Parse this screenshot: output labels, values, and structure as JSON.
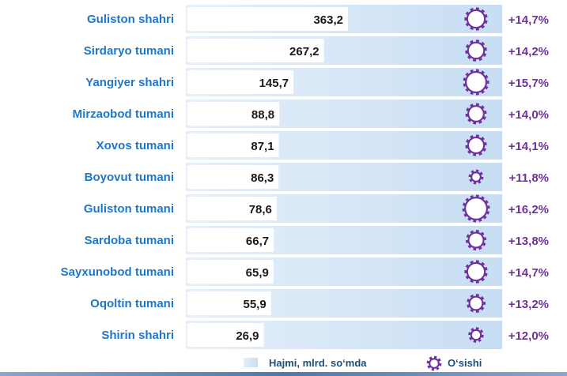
{
  "chart_data": {
    "type": "bar",
    "orientation": "horizontal",
    "categories": [
      "Guliston shahri",
      "Sirdaryo tumani",
      "Yangiyer shahri",
      "Mirzaobod tumani",
      "Xovos tumani",
      "Boyovut tumani",
      "Guliston tumani",
      "Sardoba tumani",
      "Sayxunobod tumani",
      "Oqoltin tumani",
      "Shirin shahri"
    ],
    "series": [
      {
        "name": "Hajmi, mlrd. so‘mda",
        "values": [
          363.2,
          267.2,
          145.7,
          88.8,
          87.1,
          86.3,
          78.6,
          66.7,
          65.9,
          55.9,
          26.9
        ],
        "labels": [
          "363,2",
          "267,2",
          "145,7",
          "88,8",
          "87,1",
          "86,3",
          "78,6",
          "66,7",
          "65,9",
          "55,9",
          "26,9"
        ]
      },
      {
        "name": "O‘sishi",
        "values": [
          14.7,
          14.2,
          15.7,
          14.0,
          14.1,
          11.8,
          16.2,
          13.8,
          14.7,
          13.2,
          12.0
        ],
        "labels": [
          "+14,7%",
          "+14,2%",
          "+15,7%",
          "+14,0%",
          "+14,1%",
          "+11,8%",
          "+16,2%",
          "+13,8%",
          "+14,7%",
          "+13,2%",
          "+12,0%"
        ]
      }
    ],
    "legend": {
      "position": "bottom",
      "entries": [
        "Hajmi, mlrd. so‘mda",
        "O‘sishi"
      ]
    },
    "grid": false,
    "colors": {
      "bar": "#d6e7f7",
      "bar_dark": "#b3d3ef",
      "value_box": "#ffffff",
      "category_text": "#1f77c9",
      "growth": "#7030a0",
      "legend_text": "#1f4e79",
      "baseline": "#6c8fb8"
    }
  }
}
